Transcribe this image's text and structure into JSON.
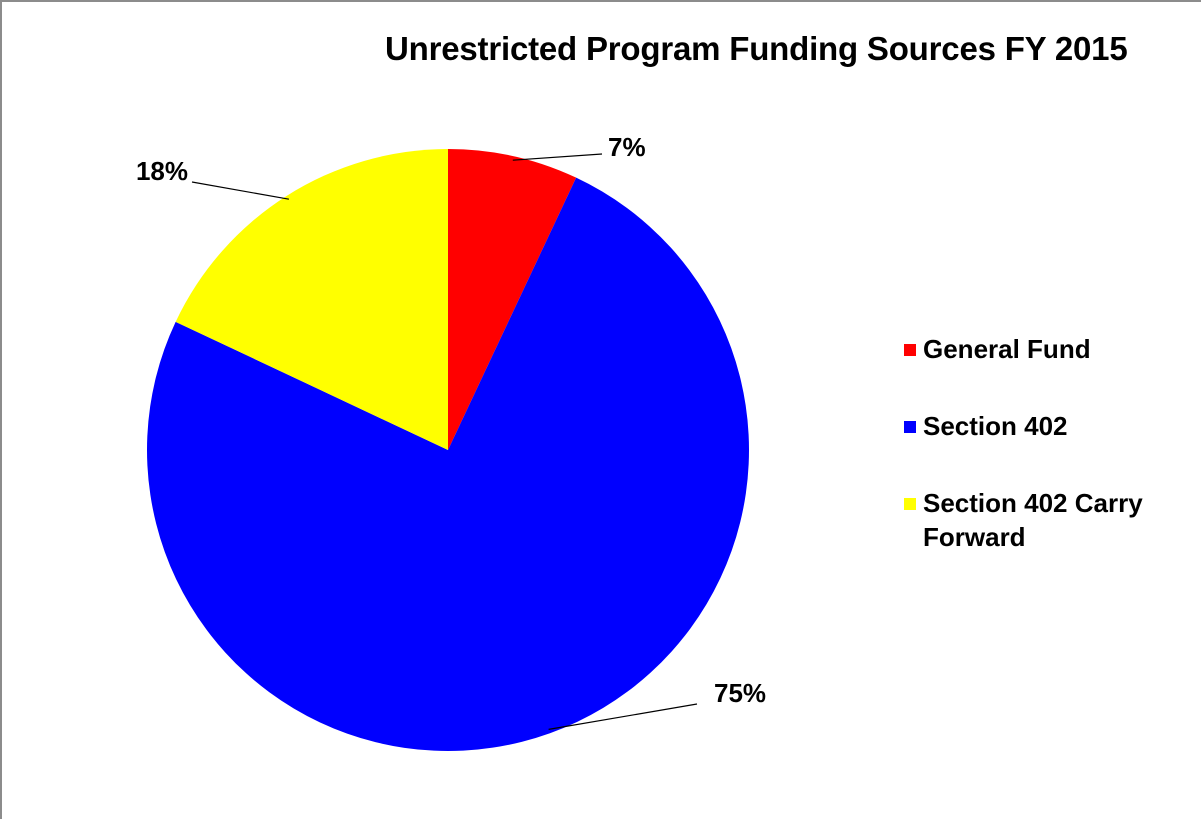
{
  "chart_data": {
    "type": "pie",
    "title": "Unrestricted Program Funding Sources FY 2015",
    "legend_position": "right",
    "slices": [
      {
        "name": "General Fund",
        "value": 7,
        "label": "7%",
        "color": "#ff0000"
      },
      {
        "name": "Section 402",
        "value": 75,
        "label": "75%",
        "color": "#0000ff"
      },
      {
        "name": "Section 402 Carry Forward",
        "value": 18,
        "label": "18%",
        "color": "#ffff00"
      }
    ]
  }
}
